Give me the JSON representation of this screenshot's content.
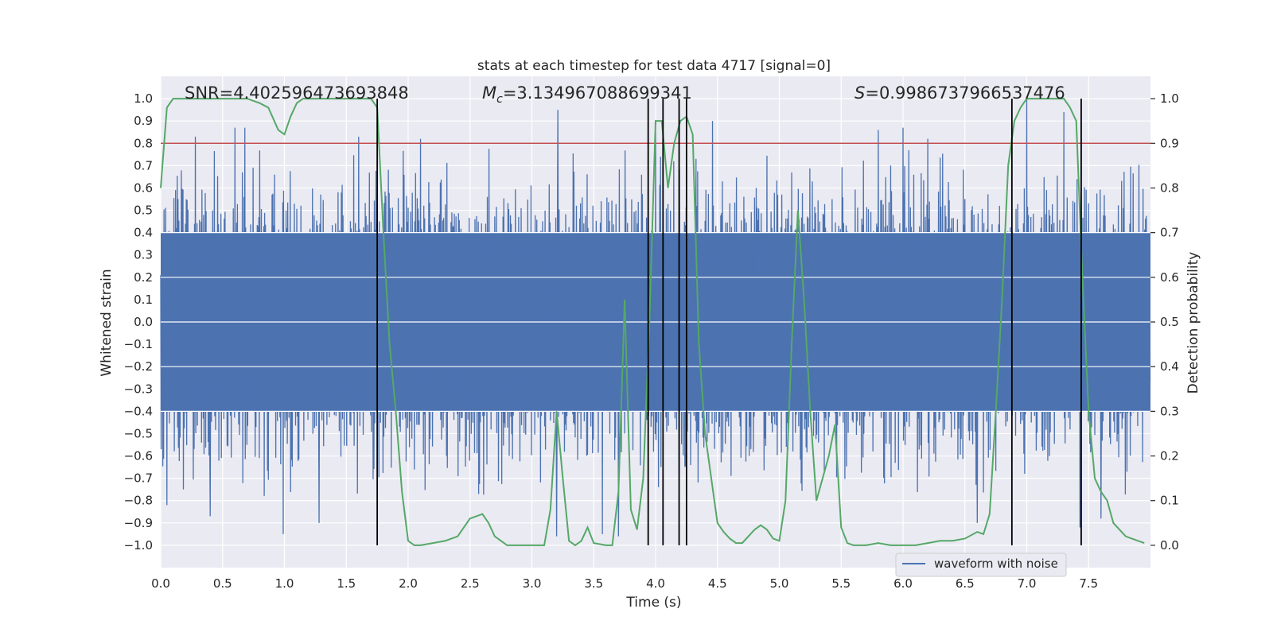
{
  "chart_data": {
    "type": "line",
    "title": "stats at each timestep for test data 4717 [signal=0]",
    "xlabel": "Time (s)",
    "ylabel": "Whitened strain",
    "y2label": "Detection probability",
    "xlim": [
      0,
      8
    ],
    "ylim": [
      -1.1,
      1.1
    ],
    "y2lim": [
      -0.05,
      1.05
    ],
    "x_ticks": [
      0.0,
      0.5,
      1.0,
      1.5,
      2.0,
      2.5,
      3.0,
      3.5,
      4.0,
      4.5,
      5.0,
      5.5,
      6.0,
      6.5,
      7.0,
      7.5
    ],
    "x_tick_labels": [
      "0.0",
      "0.5",
      "1.0",
      "1.5",
      "2.0",
      "2.5",
      "3.0",
      "3.5",
      "4.0",
      "4.5",
      "5.0",
      "5.5",
      "6.0",
      "6.5",
      "7.0",
      "7.5"
    ],
    "y_ticks": [
      1.0,
      0.9,
      0.8,
      0.7,
      0.6,
      0.5,
      0.4,
      0.3,
      0.2,
      0.1,
      0.0,
      -0.1,
      -0.2,
      -0.3,
      -0.4,
      -0.5,
      -0.6,
      -0.7,
      -0.8,
      -0.9,
      -1.0
    ],
    "y_tick_labels": [
      "1.0",
      "0.9",
      "0.8",
      "0.7",
      "0.6",
      "0.5",
      "0.4",
      "0.3",
      "0.2",
      "0.1",
      "0.0",
      "−0.1",
      "−0.2",
      "−0.3",
      "−0.4",
      "−0.5",
      "−0.6",
      "−0.7",
      "−0.8",
      "−0.9",
      "−1.0"
    ],
    "y2_ticks": [
      1.0,
      0.9,
      0.8,
      0.7,
      0.6,
      0.5,
      0.4,
      0.3,
      0.2,
      0.1,
      0.0
    ],
    "y2_tick_labels": [
      "1.0",
      "0.9",
      "0.8",
      "0.7",
      "0.6",
      "0.5",
      "0.4",
      "0.3",
      "0.2",
      "0.1",
      "0.0"
    ],
    "annotations": {
      "snr": "SNR=4.402596473693848",
      "mc_symbol": "M",
      "mc_sub": "c",
      "mc_value": "=3.134967088699341",
      "s_symbol": "S",
      "s_value": "=0.9986737966537476"
    },
    "legend": {
      "label": "waveform with noise",
      "loc": "lower-right"
    },
    "threshold": {
      "value": 0.8
    },
    "vlines": [
      1.75,
      3.94,
      4.06,
      4.19,
      4.25,
      6.88,
      7.44
    ],
    "waveform": {
      "name": "waveform with noise",
      "duration": 8.0,
      "n_samples": 2400,
      "envelope_pos": 0.6,
      "envelope_neg": -0.6,
      "notable_peaks": [
        {
          "x": 0.28,
          "y": 0.83
        },
        {
          "x": 0.6,
          "y": 0.87
        },
        {
          "x": 0.68,
          "y": 0.87
        },
        {
          "x": 1.28,
          "y": 0.87
        },
        {
          "x": 1.6,
          "y": 0.83
        },
        {
          "x": 2.1,
          "y": 0.82
        },
        {
          "x": 3.21,
          "y": 0.95
        },
        {
          "x": 4.0,
          "y": 0.85
        },
        {
          "x": 4.46,
          "y": 0.9
        },
        {
          "x": 5.8,
          "y": 0.86
        },
        {
          "x": 6.0,
          "y": 0.87
        },
        {
          "x": 6.2,
          "y": 0.82
        },
        {
          "x": 7.0,
          "y": 1.0
        },
        {
          "x": 7.3,
          "y": 0.94
        },
        {
          "x": 0.99,
          "y": -0.95
        },
        {
          "x": 1.28,
          "y": -0.9
        },
        {
          "x": 3.2,
          "y": -0.96
        },
        {
          "x": 3.57,
          "y": -0.95
        },
        {
          "x": 3.7,
          "y": -0.96
        },
        {
          "x": 6.6,
          "y": -0.9
        },
        {
          "x": 7.43,
          "y": -0.92
        },
        {
          "x": 7.6,
          "y": -0.88
        },
        {
          "x": 0.05,
          "y": -0.82
        },
        {
          "x": 0.4,
          "y": -0.87
        }
      ],
      "color": "#4c72b0"
    },
    "probability": {
      "name": "Detection probability",
      "color": "#55a868",
      "x": [
        0.0,
        0.05,
        0.1,
        0.2,
        0.3,
        0.4,
        0.5,
        0.6,
        0.7,
        0.8,
        0.87,
        0.95,
        1.0,
        1.05,
        1.1,
        1.15,
        1.2,
        1.3,
        1.4,
        1.5,
        1.6,
        1.7,
        1.75,
        1.8,
        1.85,
        1.9,
        1.95,
        2.0,
        2.05,
        2.1,
        2.2,
        2.3,
        2.4,
        2.45,
        2.5,
        2.55,
        2.6,
        2.65,
        2.7,
        2.8,
        2.9,
        3.0,
        3.05,
        3.1,
        3.15,
        3.2,
        3.25,
        3.3,
        3.35,
        3.4,
        3.45,
        3.5,
        3.6,
        3.65,
        3.7,
        3.75,
        3.8,
        3.85,
        3.9,
        3.95,
        4.0,
        4.05,
        4.1,
        4.15,
        4.2,
        4.25,
        4.3,
        4.35,
        4.4,
        4.45,
        4.5,
        4.55,
        4.6,
        4.65,
        4.7,
        4.75,
        4.8,
        4.85,
        4.9,
        4.95,
        5.0,
        5.05,
        5.1,
        5.15,
        5.2,
        5.25,
        5.3,
        5.35,
        5.4,
        5.45,
        5.5,
        5.55,
        5.6,
        5.7,
        5.8,
        5.9,
        6.0,
        6.1,
        6.2,
        6.3,
        6.4,
        6.5,
        6.6,
        6.65,
        6.7,
        6.75,
        6.8,
        6.85,
        6.9,
        6.95,
        7.0,
        7.05,
        7.1,
        7.2,
        7.3,
        7.35,
        7.4,
        7.45,
        7.5,
        7.55,
        7.6,
        7.65,
        7.7,
        7.8,
        7.9,
        7.95
      ],
      "y": [
        0.8,
        0.98,
        1.0,
        1.0,
        1.0,
        1.0,
        1.0,
        1.0,
        1.0,
        0.99,
        0.98,
        0.93,
        0.92,
        0.96,
        0.99,
        1.0,
        1.0,
        1.0,
        1.0,
        1.0,
        1.0,
        1.0,
        0.98,
        0.7,
        0.45,
        0.3,
        0.12,
        0.01,
        0.0,
        0.0,
        0.005,
        0.01,
        0.02,
        0.04,
        0.06,
        0.065,
        0.07,
        0.05,
        0.02,
        0.0,
        0.0,
        0.0,
        0.0,
        0.0,
        0.08,
        0.3,
        0.15,
        0.01,
        0.0,
        0.01,
        0.04,
        0.005,
        0.0,
        0.0,
        0.12,
        0.55,
        0.08,
        0.035,
        0.15,
        0.5,
        0.95,
        0.95,
        0.8,
        0.9,
        0.95,
        0.96,
        0.92,
        0.45,
        0.25,
        0.15,
        0.05,
        0.03,
        0.015,
        0.005,
        0.005,
        0.02,
        0.035,
        0.045,
        0.035,
        0.015,
        0.01,
        0.1,
        0.45,
        0.75,
        0.55,
        0.3,
        0.1,
        0.15,
        0.2,
        0.27,
        0.04,
        0.005,
        0.0,
        0.0,
        0.005,
        0.0,
        0.0,
        0.0,
        0.005,
        0.01,
        0.01,
        0.015,
        0.03,
        0.025,
        0.07,
        0.3,
        0.55,
        0.85,
        0.95,
        0.98,
        1.0,
        1.0,
        1.0,
        1.0,
        1.0,
        0.98,
        0.95,
        0.6,
        0.3,
        0.15,
        0.12,
        0.1,
        0.05,
        0.02,
        0.01,
        0.005
      ]
    }
  }
}
